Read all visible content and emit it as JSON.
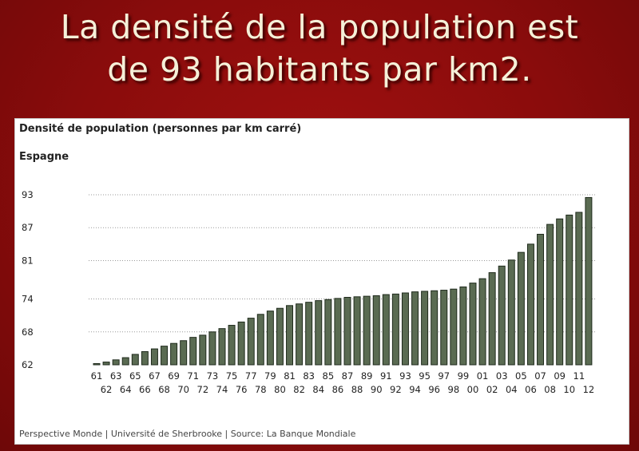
{
  "slide": {
    "title_line1": "La densité de la population est",
    "title_line2": "de 93 habitants par km2."
  },
  "chart_data": {
    "type": "bar",
    "title": "Densité de population (personnes par km carré)",
    "subtitle": "Espagne",
    "source": "Perspective Monde | Université de Sherbrooke | Source: La Banque Mondiale",
    "yticks": [
      62,
      68,
      74,
      81,
      87,
      93
    ],
    "ylim": [
      62,
      93
    ],
    "grid": true,
    "bar_color": "#5a6b52",
    "bar_edge": "#1f2a1c",
    "categories": [
      "61",
      "62",
      "63",
      "64",
      "65",
      "66",
      "67",
      "68",
      "69",
      "70",
      "71",
      "72",
      "73",
      "74",
      "75",
      "76",
      "77",
      "78",
      "79",
      "80",
      "81",
      "82",
      "83",
      "84",
      "85",
      "86",
      "87",
      "88",
      "89",
      "90",
      "91",
      "92",
      "93",
      "94",
      "95",
      "96",
      "97",
      "98",
      "99",
      "00",
      "01",
      "02",
      "03",
      "04",
      "05",
      "06",
      "07",
      "08",
      "09",
      "10",
      "11",
      "12"
    ],
    "values": [
      62.2,
      62.5,
      62.9,
      63.3,
      63.9,
      64.4,
      64.9,
      65.4,
      65.9,
      66.4,
      67.0,
      67.4,
      68.0,
      68.6,
      69.2,
      69.8,
      70.5,
      71.2,
      71.8,
      72.3,
      72.8,
      73.1,
      73.4,
      73.7,
      73.9,
      74.1,
      74.3,
      74.4,
      74.5,
      74.6,
      74.8,
      74.9,
      75.1,
      75.3,
      75.4,
      75.5,
      75.6,
      75.8,
      76.2,
      76.9,
      77.7,
      78.8,
      80.0,
      81.1,
      82.5,
      84.0,
      85.8,
      87.6,
      88.6,
      89.3,
      89.8,
      92.5
    ]
  }
}
